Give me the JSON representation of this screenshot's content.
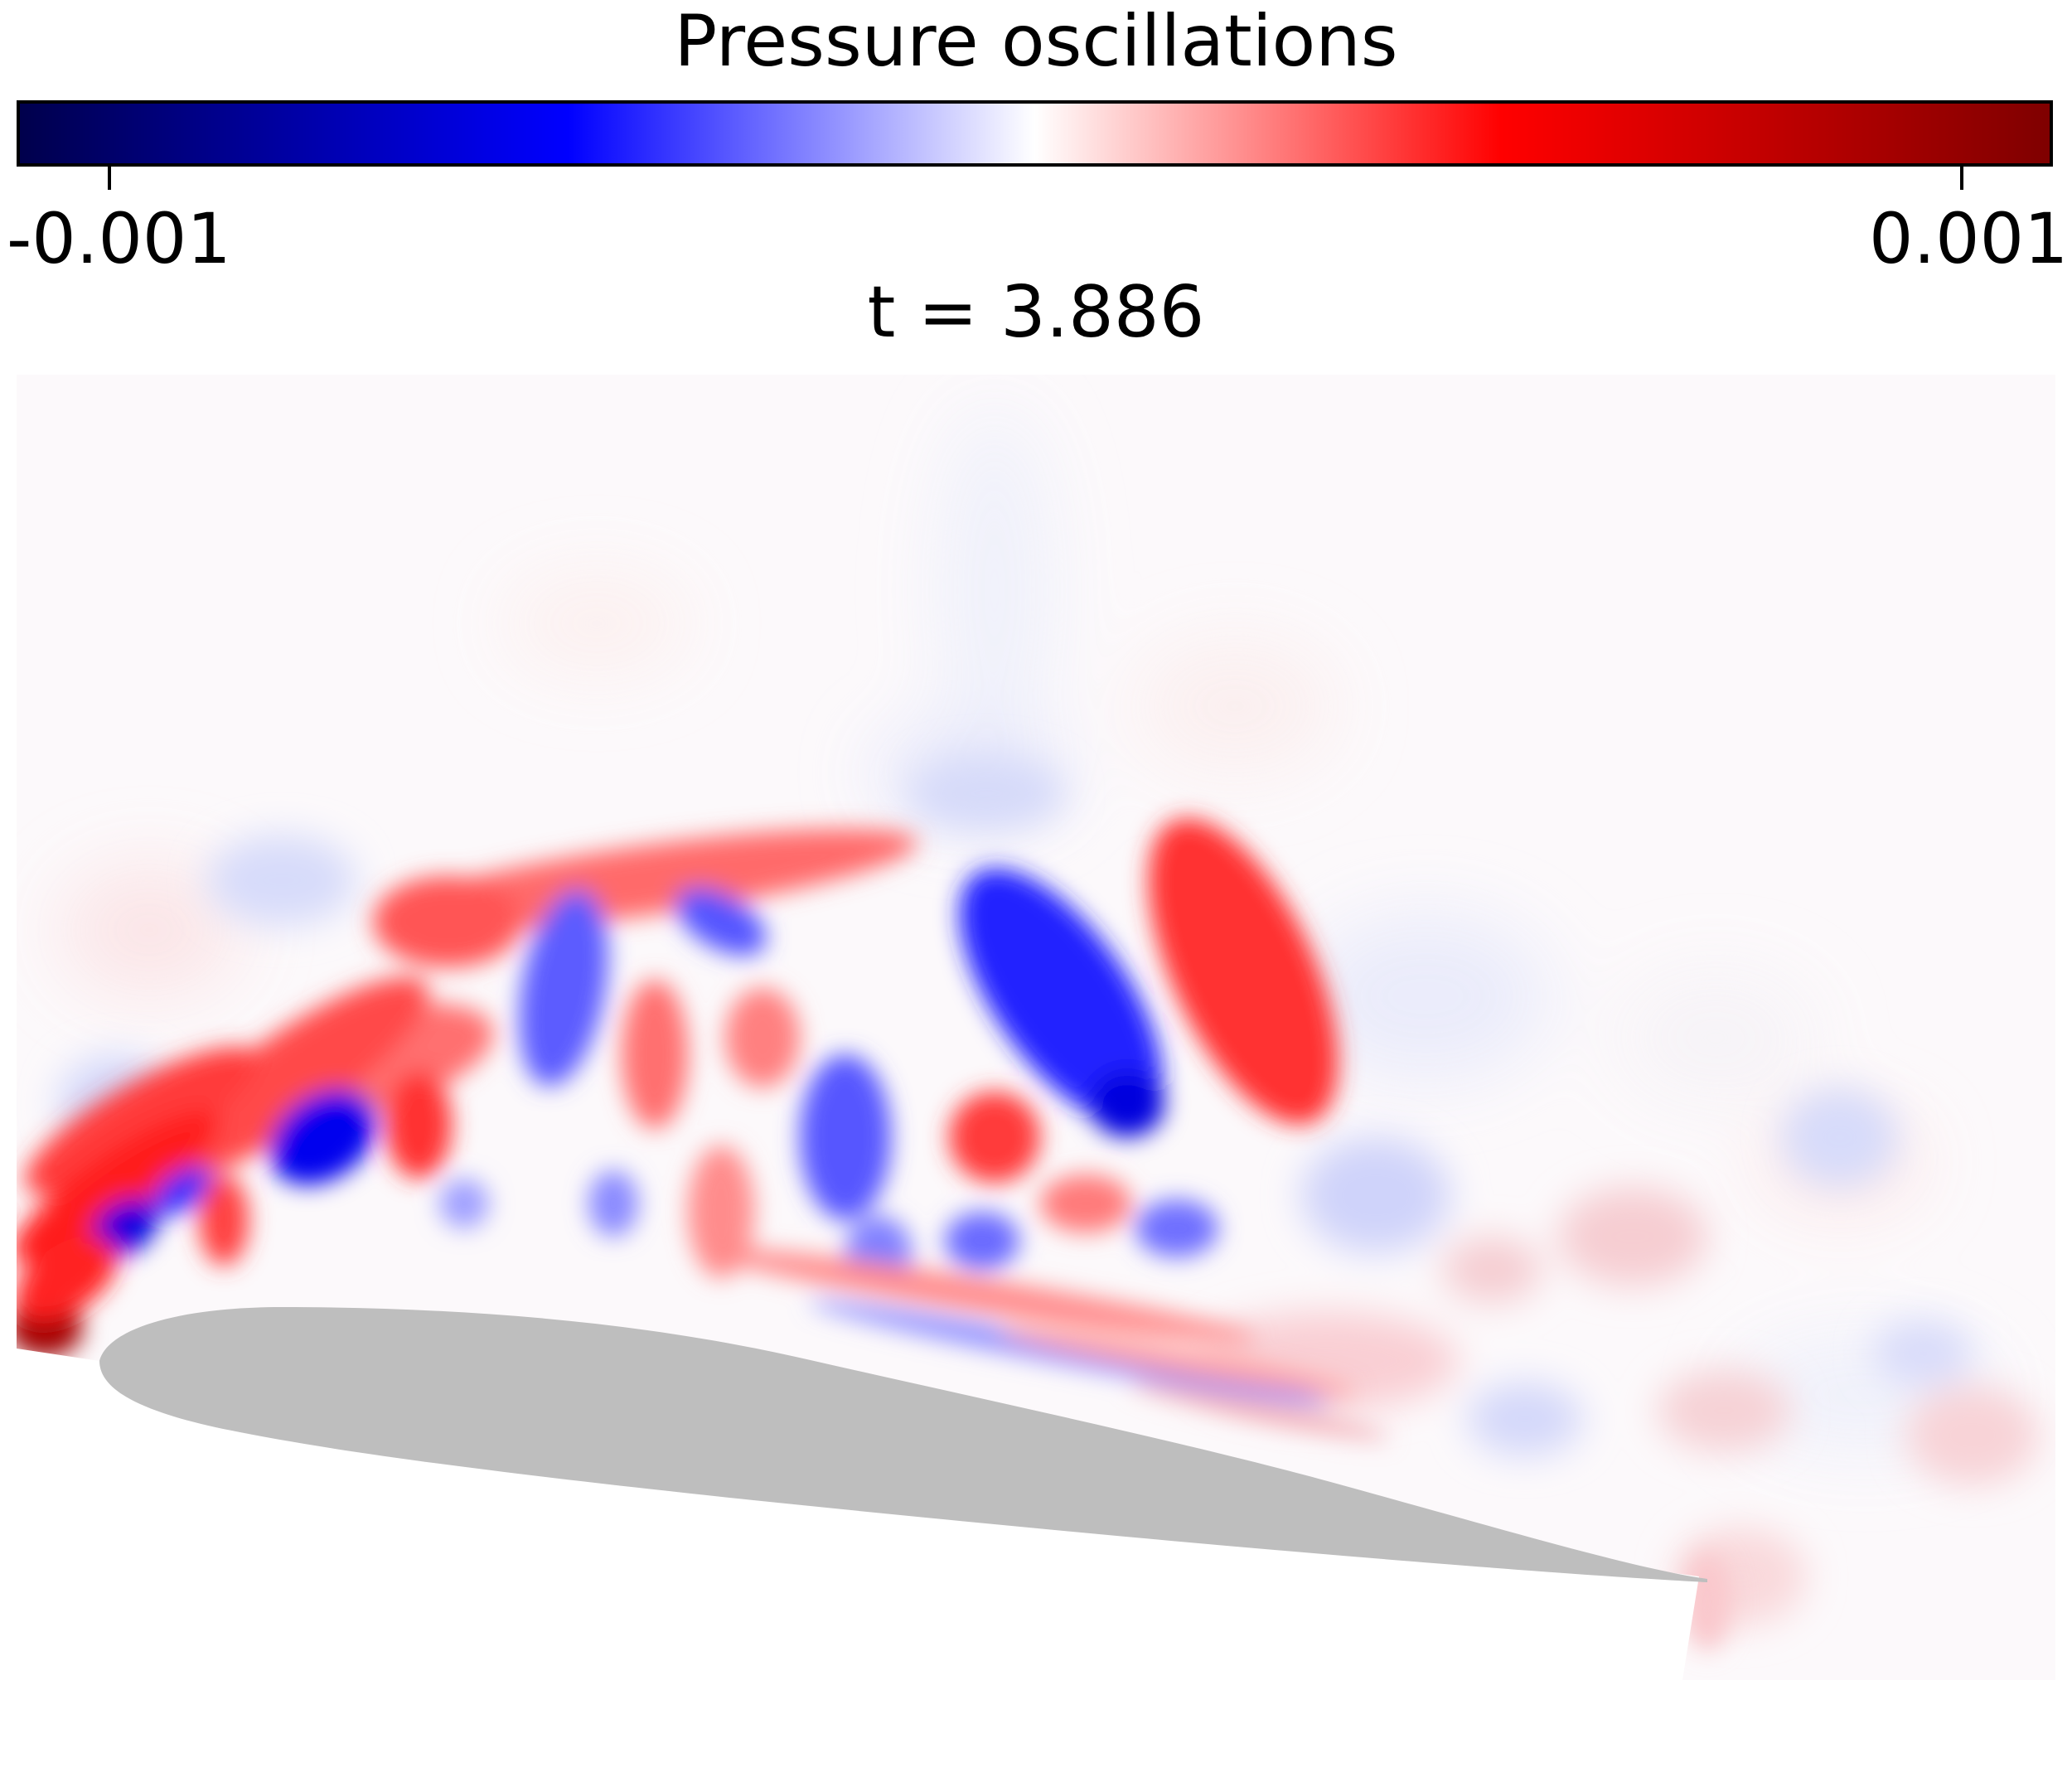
{
  "colorbar": {
    "title": "Pressure oscillations",
    "min_label": "-0.001",
    "max_label": "0.001",
    "min_value": -0.001,
    "max_value": 0.001,
    "colormap": "seismic",
    "colors": [
      "#00004c",
      "#0000ff",
      "#ffffff",
      "#ff0000",
      "#7f0000"
    ]
  },
  "plot": {
    "time_label": "t = 3.886",
    "airfoil_color": "#bebebe",
    "background_color": "#fcf9fb"
  }
}
